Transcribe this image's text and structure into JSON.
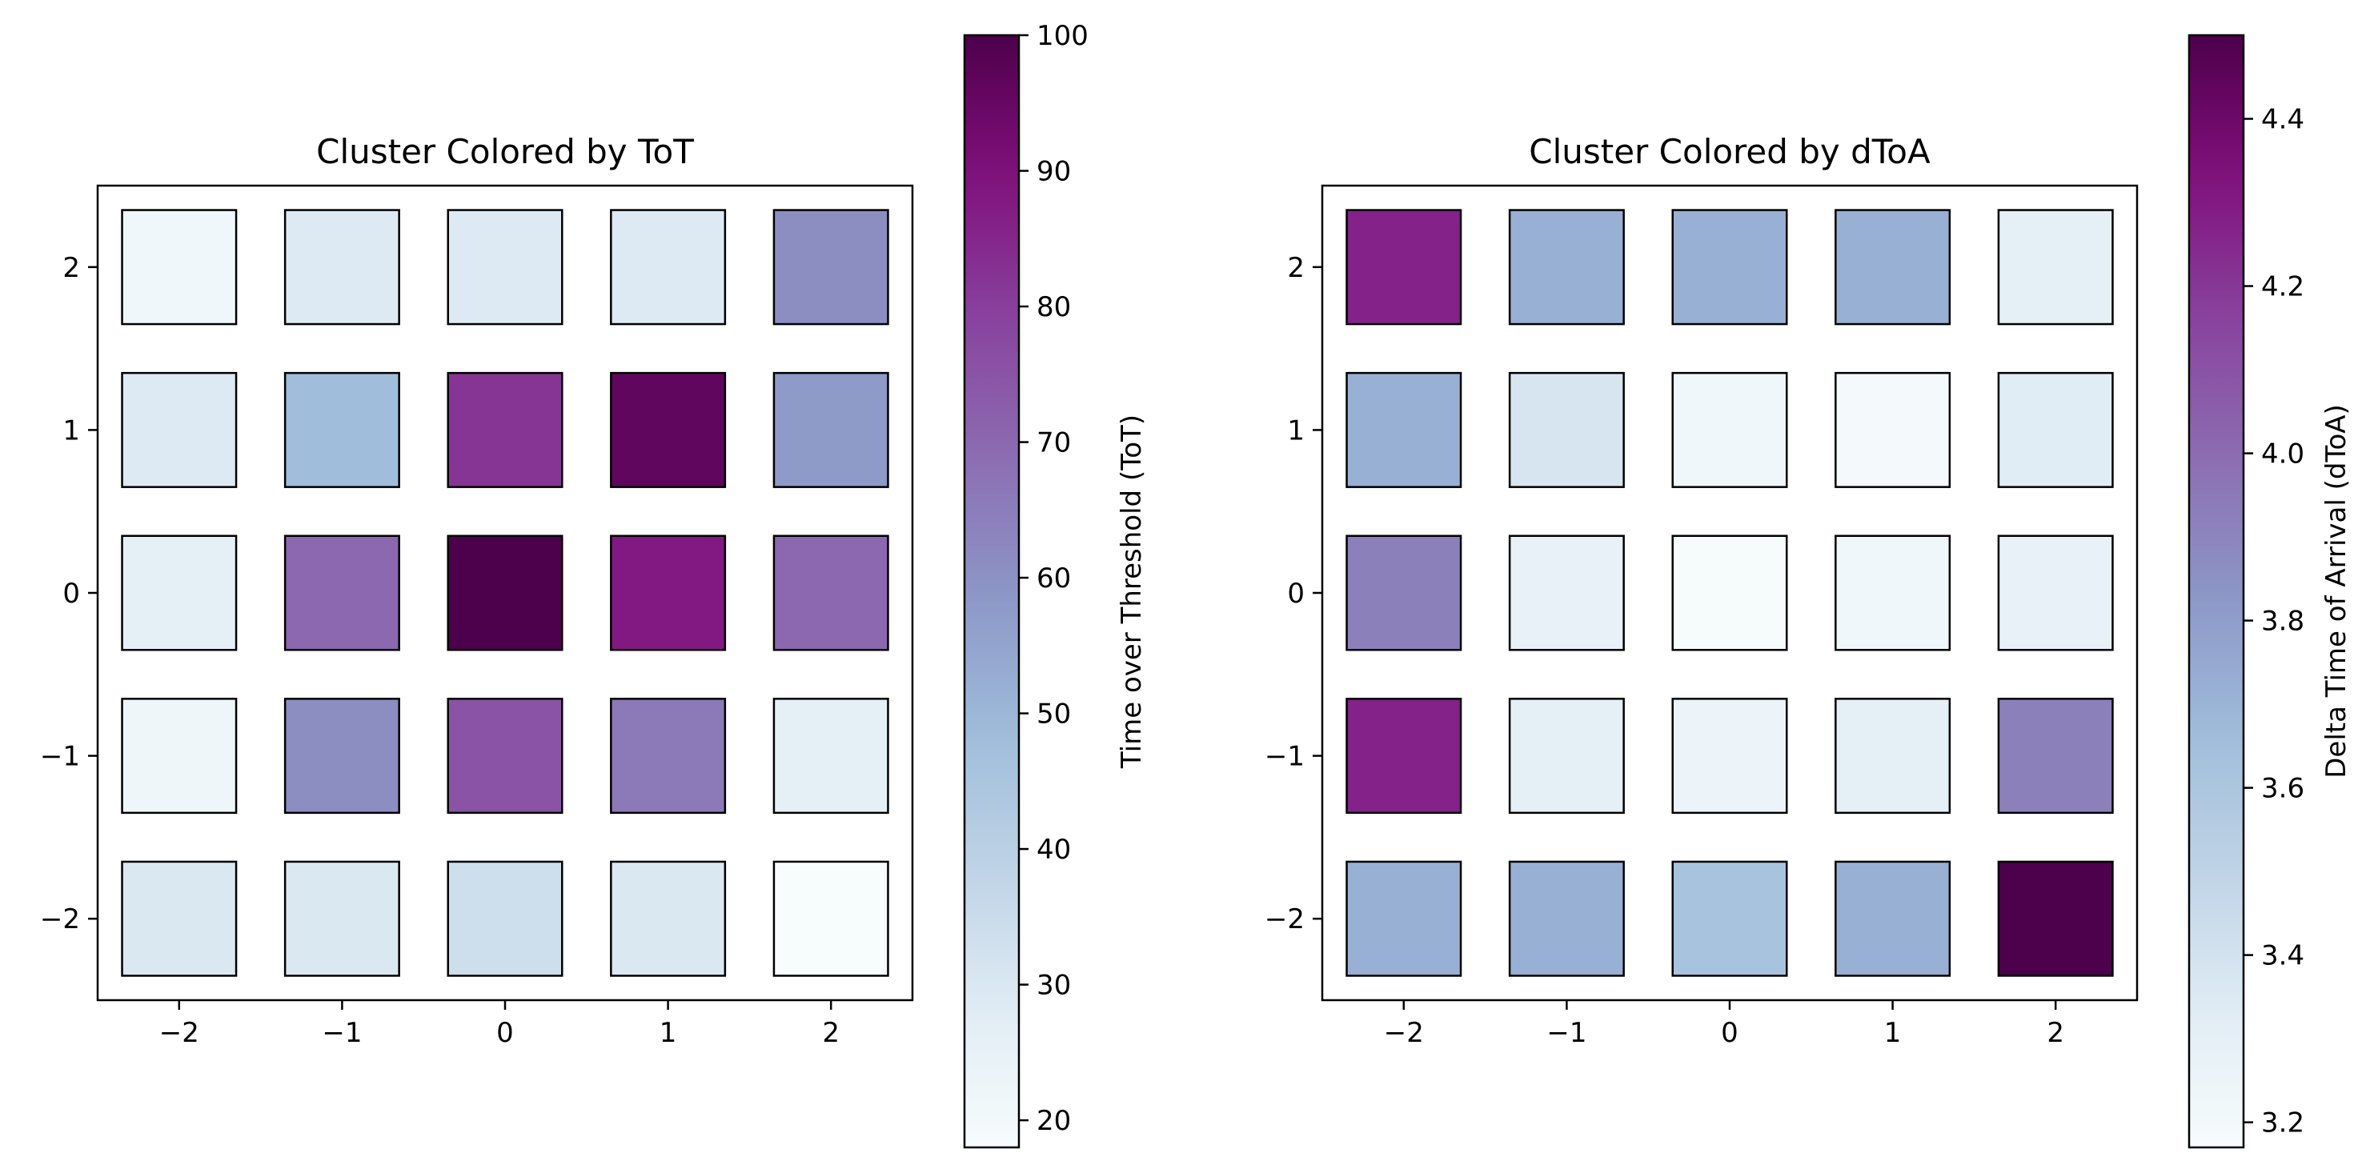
{
  "chart_data": [
    {
      "type": "heatmap",
      "title": "Cluster Colored by ToT",
      "xlabel": "",
      "ylabel": "",
      "x_ticks": [
        "−2",
        "−1",
        "0",
        "1",
        "2"
      ],
      "y_ticks": [
        "2",
        "1",
        "0",
        "−1",
        "−2"
      ],
      "x_values": [
        -2,
        -1,
        0,
        1,
        2
      ],
      "y_values": [
        -2,
        -1,
        0,
        1,
        2
      ],
      "xlim": [
        -2.5,
        2.5
      ],
      "ylim": [
        -2.5,
        2.5
      ],
      "grid": [
        [
          21,
          29,
          29,
          29,
          61
        ],
        [
          29,
          48,
          82,
          96,
          58
        ],
        [
          26,
          70,
          100,
          88,
          70
        ],
        [
          22,
          61,
          75,
          66,
          26
        ],
        [
          30,
          30,
          34,
          30,
          18
        ]
      ],
      "colorbar": {
        "label": "Time over Threshold (ToT)",
        "min": 18,
        "max": 100,
        "ticks": [
          20,
          30,
          40,
          50,
          60,
          70,
          80,
          90,
          100
        ],
        "tick_labels": [
          "20",
          "30",
          "40",
          "50",
          "60",
          "70",
          "80",
          "90",
          "100"
        ],
        "colormap": "BuPu"
      }
    },
    {
      "type": "heatmap",
      "title": "Cluster Colored by dToA",
      "xlabel": "",
      "ylabel": "",
      "x_ticks": [
        "−2",
        "−1",
        "0",
        "1",
        "2"
      ],
      "y_ticks": [
        "2",
        "1",
        "0",
        "−1",
        "−2"
      ],
      "x_values": [
        -2,
        -1,
        0,
        1,
        2
      ],
      "y_values": [
        -2,
        -1,
        0,
        1,
        2
      ],
      "xlim": [
        -2.5,
        2.5
      ],
      "ylim": [
        -2.5,
        2.5
      ],
      "grid": [
        [
          4.27,
          3.72,
          3.72,
          3.72,
          3.3
        ],
        [
          3.72,
          3.38,
          3.22,
          3.19,
          3.33
        ],
        [
          3.92,
          3.28,
          3.18,
          3.22,
          3.28
        ],
        [
          4.27,
          3.3,
          3.25,
          3.3,
          3.92
        ],
        [
          3.72,
          3.72,
          3.62,
          3.72,
          4.5
        ]
      ],
      "colorbar": {
        "label": "Delta Time of Arrival (dToA)",
        "min": 3.17,
        "max": 4.5,
        "ticks": [
          3.2,
          3.4,
          3.6,
          3.8,
          4.0,
          4.2,
          4.4
        ],
        "tick_labels": [
          "3.2",
          "3.4",
          "3.6",
          "3.8",
          "4.0",
          "4.2",
          "4.4"
        ],
        "colormap": "BuPu"
      }
    }
  ]
}
